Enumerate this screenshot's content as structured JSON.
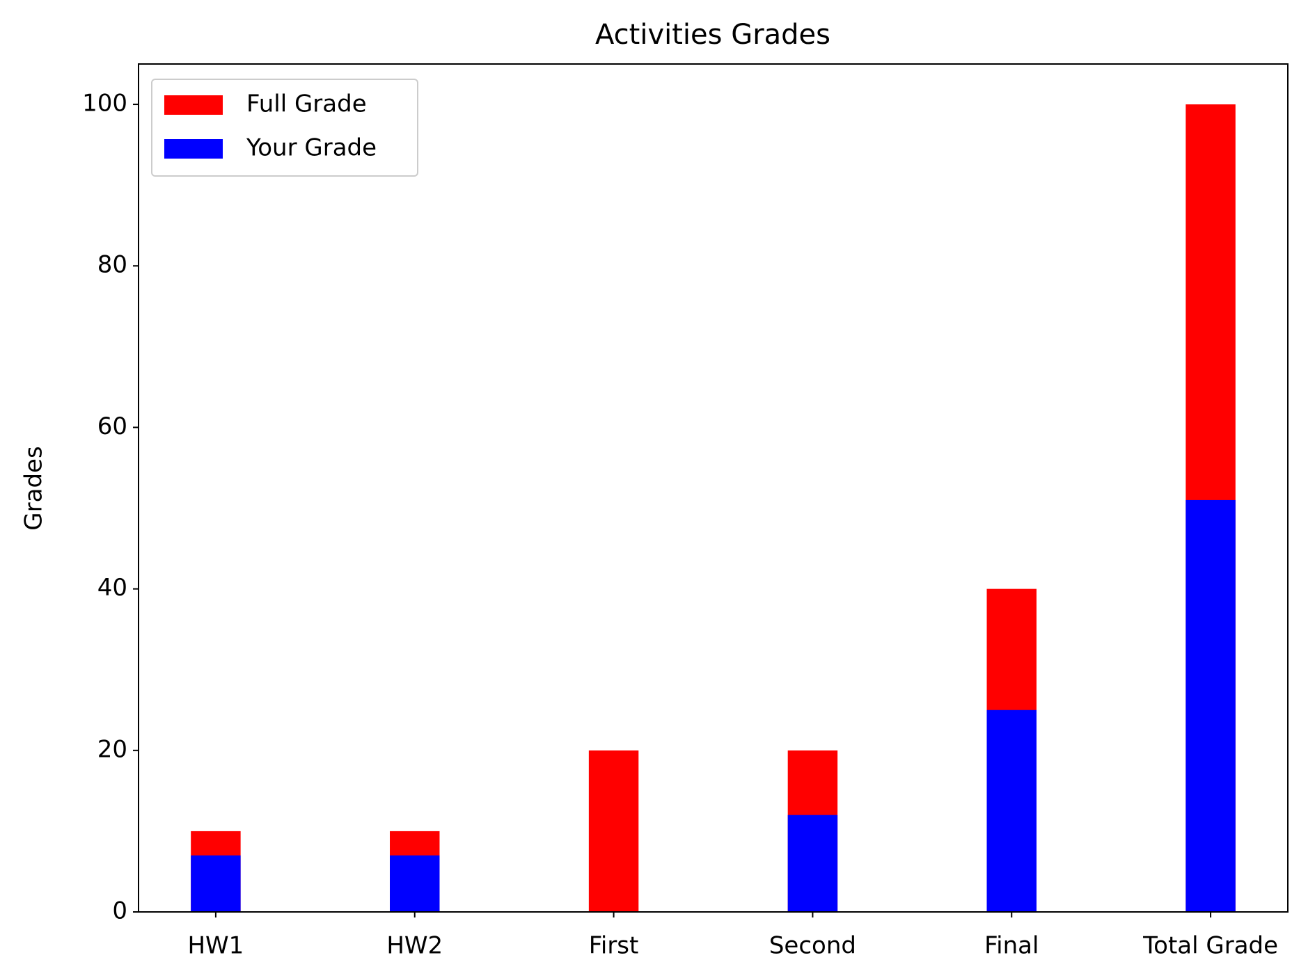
{
  "chart_data": {
    "type": "bar",
    "title": "Activities Grades",
    "ylabel": "Grades",
    "categories": [
      "HW1",
      "HW2",
      "First",
      "Second",
      "Final",
      "Total Grade"
    ],
    "series": [
      {
        "name": "Full Grade",
        "color": "#ff0000",
        "values": [
          10,
          10,
          20,
          20,
          40,
          100
        ]
      },
      {
        "name": "Your Grade",
        "color": "#0000ff",
        "values": [
          7,
          7,
          0,
          12,
          25,
          51
        ]
      }
    ],
    "ylim": [
      0,
      105
    ],
    "yticks": [
      0,
      20,
      40,
      60,
      80,
      100
    ],
    "grid": false,
    "legend": "upper left"
  }
}
